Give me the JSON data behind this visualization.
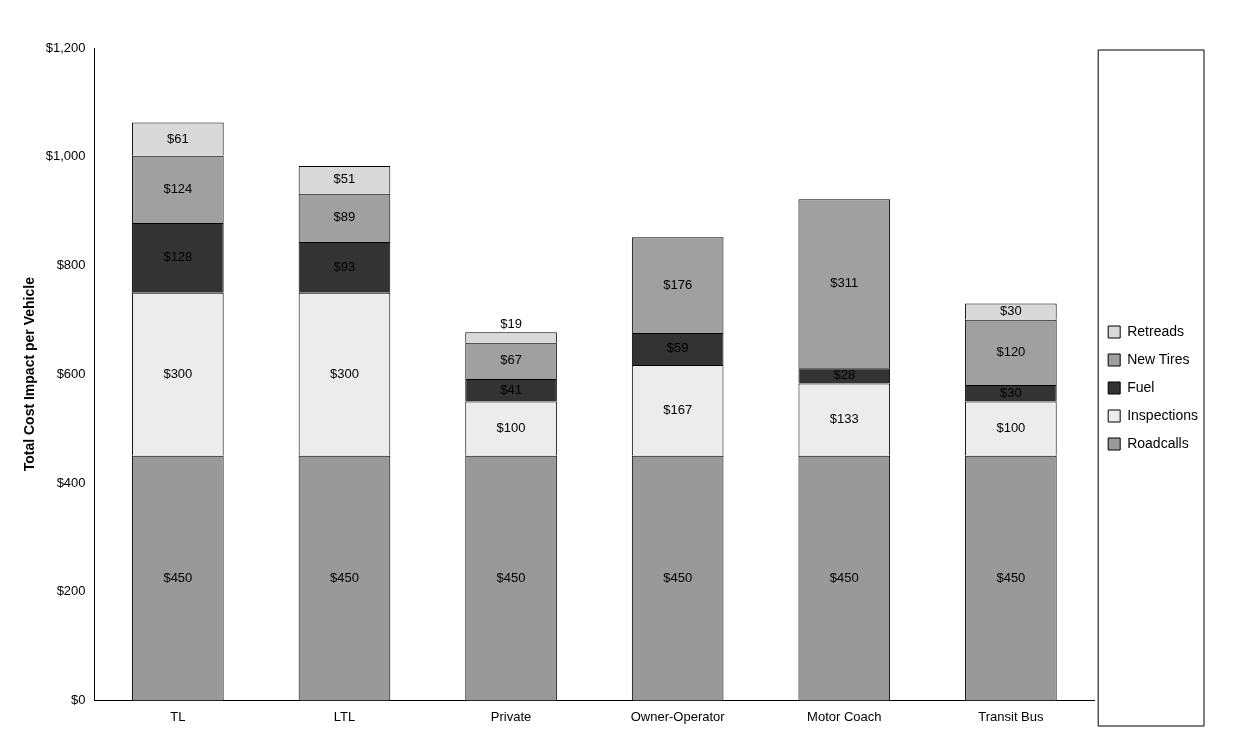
{
  "chart_data": {
    "type": "bar",
    "stacked": true,
    "ylabel": "Total Cost Impact per Vehicle",
    "categories": [
      "TL",
      "LTL",
      "Private",
      "Owner-Operator",
      "Motor Coach",
      "Transit Bus"
    ],
    "series": [
      {
        "name": "Roadcalls",
        "color": "#999999",
        "values": [
          450,
          450,
          450,
          450,
          450,
          450
        ],
        "value_labels": [
          "$450",
          "$450",
          "$450",
          "$450",
          "$450",
          "$450"
        ]
      },
      {
        "name": "Inspections",
        "color": "#ececec",
        "values": [
          300,
          300,
          100,
          167,
          133,
          100
        ],
        "value_labels": [
          "$300",
          "$300",
          "$100",
          "$167",
          "$133",
          "$100"
        ]
      },
      {
        "name": "Fuel",
        "color": "#333333",
        "values": [
          128,
          93,
          41,
          59,
          28,
          30
        ],
        "value_labels": [
          "$128",
          "$93",
          "$41",
          "$59",
          "$28",
          "$30"
        ]
      },
      {
        "name": "New Tires",
        "color": "#a0a0a0",
        "values": [
          124,
          89,
          67,
          176,
          311,
          120
        ],
        "value_labels": [
          "$124",
          "$89",
          "$67",
          "$176",
          "$311",
          "$120"
        ]
      },
      {
        "name": "Retreads",
        "color": "#d9d9d9",
        "values": [
          61,
          51,
          19,
          null,
          null,
          30
        ],
        "value_labels": [
          "$61",
          "$51",
          "$19",
          null,
          null,
          "$30"
        ]
      }
    ],
    "ylim": [
      0,
      1200
    ],
    "yticks": [
      {
        "value": 0,
        "label": "$0"
      },
      {
        "value": 200,
        "label": "$200"
      },
      {
        "value": 400,
        "label": "$400"
      },
      {
        "value": 600,
        "label": "$600"
      },
      {
        "value": 800,
        "label": "$800"
      },
      {
        "value": 1000,
        "label": "$1,000"
      },
      {
        "value": 1200,
        "label": "$1,200"
      }
    ],
    "grid": false,
    "legend": "right"
  }
}
